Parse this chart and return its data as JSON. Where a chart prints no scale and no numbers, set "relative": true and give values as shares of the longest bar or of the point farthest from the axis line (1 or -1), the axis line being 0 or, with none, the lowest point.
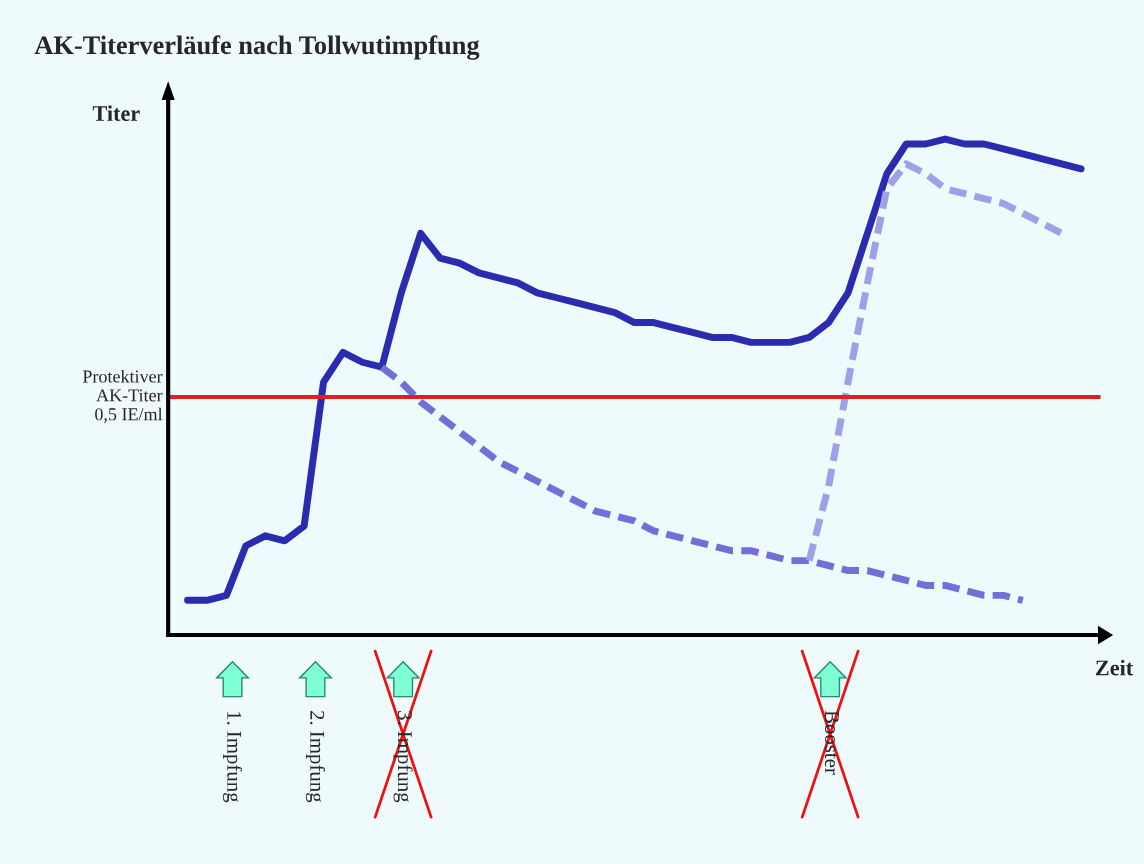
{
  "chart_data": {
    "type": "line",
    "title": "AK-Titerverläufe nach Tollwutimpfung",
    "xlabel": "Zeit",
    "ylabel": "Titer",
    "relative": true,
    "categories": [
      null,
      null,
      null,
      null,
      null,
      null,
      null,
      null,
      null,
      null,
      null,
      null,
      null,
      null,
      null,
      null,
      null,
      null,
      null,
      null,
      null,
      null,
      null,
      null,
      null,
      null,
      null,
      null,
      null,
      null,
      null,
      null,
      null,
      null,
      null,
      null,
      null,
      null,
      null,
      null,
      null,
      null,
      null,
      null,
      null,
      null,
      null
    ],
    "series": [
      {
        "color": "#2b2bb0",
        "line_style": "solid",
        "values": [
          0.07,
          0.07,
          0.08,
          0.18,
          0.2,
          0.19,
          0.22,
          0.51,
          0.57,
          0.55,
          0.54,
          0.69,
          0.81,
          0.76,
          0.75,
          0.73,
          0.72,
          0.71,
          0.69,
          0.68,
          0.67,
          0.66,
          0.65,
          0.63,
          0.63,
          0.62,
          0.61,
          0.6,
          0.6,
          0.59,
          0.59,
          0.59,
          0.6,
          0.63,
          0.69,
          0.81,
          0.93,
          0.99,
          0.99,
          1.0,
          0.99,
          0.99,
          0.98,
          0.97,
          0.96,
          0.95,
          0.94
        ]
      },
      {
        "color": "#7070d8",
        "line_style": "dashed",
        "values": [
          null,
          null,
          null,
          null,
          null,
          null,
          null,
          null,
          null,
          null,
          0.54,
          0.51,
          0.47,
          0.44,
          0.41,
          0.38,
          0.35,
          0.33,
          0.31,
          0.29,
          0.27,
          0.25,
          0.24,
          0.23,
          0.21,
          0.2,
          0.19,
          0.18,
          0.17,
          0.17,
          0.16,
          0.15,
          0.15,
          0.14,
          0.13,
          0.13,
          0.12,
          0.11,
          0.1,
          0.1,
          0.09,
          0.08,
          0.08,
          0.07,
          null,
          null,
          null
        ]
      },
      {
        "color": "#a0a0e8",
        "line_style": "dashed",
        "values": [
          null,
          null,
          null,
          null,
          null,
          null,
          null,
          null,
          null,
          null,
          null,
          null,
          null,
          null,
          null,
          null,
          null,
          null,
          null,
          null,
          null,
          null,
          null,
          null,
          null,
          null,
          null,
          null,
          null,
          null,
          null,
          null,
          0.15,
          0.3,
          0.51,
          0.71,
          0.9,
          0.95,
          0.93,
          0.9,
          0.89,
          0.88,
          0.87,
          0.85,
          0.83,
          0.81,
          null
        ]
      }
    ],
    "ref_lines": [
      {
        "axis": "y",
        "value": 0.48,
        "label": "Protektiver\nAK-Titer\n0,5 IE/ml",
        "color": "#e02020"
      }
    ],
    "annotations": [
      "1. Impfung",
      "2. Impfung",
      "3. Impfung",
      "Booster"
    ]
  }
}
